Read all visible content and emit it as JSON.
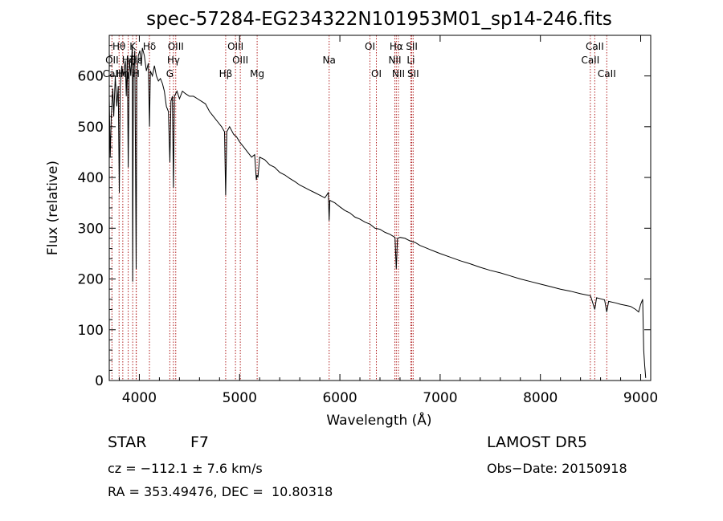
{
  "chart_data": {
    "type": "line",
    "title": "spec-57284-EG234322N101953M01_sp14-246.fits",
    "xlabel": "Wavelength (Å)",
    "ylabel": "Flux (relative)",
    "xlim": [
      3700,
      9100
    ],
    "ylim": [
      0,
      680
    ],
    "xticks": [
      4000,
      5000,
      6000,
      7000,
      8000,
      9000
    ],
    "yticks": [
      0,
      100,
      200,
      300,
      400,
      500,
      600
    ],
    "grid": false,
    "line_color": "#000000",
    "marker_color": "#b22222",
    "series": [
      {
        "values": [
          [
            3700,
            560
          ],
          [
            3710,
            440
          ],
          [
            3720,
            520
          ],
          [
            3735,
            575
          ],
          [
            3745,
            520
          ],
          [
            3760,
            600
          ],
          [
            3775,
            540
          ],
          [
            3790,
            580
          ],
          [
            3800,
            370
          ],
          [
            3810,
            580
          ],
          [
            3825,
            620
          ],
          [
            3840,
            600
          ],
          [
            3860,
            630
          ],
          [
            3870,
            560
          ],
          [
            3880,
            640
          ],
          [
            3889,
            420
          ],
          [
            3900,
            635
          ],
          [
            3915,
            600
          ],
          [
            3930,
            660
          ],
          [
            3934,
            195
          ],
          [
            3940,
            600
          ],
          [
            3955,
            650
          ],
          [
            3968,
            220
          ],
          [
            3975,
            600
          ],
          [
            3990,
            640
          ],
          [
            4005,
            650
          ],
          [
            4020,
            620
          ],
          [
            4030,
            655
          ],
          [
            4050,
            640
          ],
          [
            4070,
            610
          ],
          [
            4090,
            625
          ],
          [
            4101,
            500
          ],
          [
            4110,
            610
          ],
          [
            4130,
            600
          ],
          [
            4150,
            620
          ],
          [
            4170,
            600
          ],
          [
            4190,
            590
          ],
          [
            4210,
            595
          ],
          [
            4230,
            585
          ],
          [
            4250,
            570
          ],
          [
            4270,
            540
          ],
          [
            4290,
            530
          ],
          [
            4305,
            430
          ],
          [
            4315,
            550
          ],
          [
            4330,
            560
          ],
          [
            4340,
            380
          ],
          [
            4350,
            560
          ],
          [
            4375,
            570
          ],
          [
            4400,
            555
          ],
          [
            4430,
            570
          ],
          [
            4460,
            565
          ],
          [
            4500,
            560
          ],
          [
            4540,
            560
          ],
          [
            4580,
            555
          ],
          [
            4620,
            550
          ],
          [
            4660,
            545
          ],
          [
            4700,
            530
          ],
          [
            4740,
            520
          ],
          [
            4780,
            510
          ],
          [
            4820,
            500
          ],
          [
            4850,
            490
          ],
          [
            4861,
            365
          ],
          [
            4872,
            490
          ],
          [
            4900,
            500
          ],
          [
            4940,
            485
          ],
          [
            4970,
            480
          ],
          [
            5000,
            470
          ],
          [
            5040,
            460
          ],
          [
            5080,
            450
          ],
          [
            5120,
            440
          ],
          [
            5150,
            445
          ],
          [
            5167,
            395
          ],
          [
            5173,
            405
          ],
          [
            5183,
            400
          ],
          [
            5200,
            440
          ],
          [
            5250,
            435
          ],
          [
            5300,
            425
          ],
          [
            5350,
            420
          ],
          [
            5400,
            410
          ],
          [
            5450,
            405
          ],
          [
            5500,
            398
          ],
          [
            5550,
            392
          ],
          [
            5600,
            385
          ],
          [
            5650,
            380
          ],
          [
            5700,
            375
          ],
          [
            5750,
            370
          ],
          [
            5800,
            365
          ],
          [
            5850,
            360
          ],
          [
            5885,
            370
          ],
          [
            5893,
            315
          ],
          [
            5900,
            355
          ],
          [
            5950,
            350
          ],
          [
            6000,
            342
          ],
          [
            6050,
            335
          ],
          [
            6100,
            330
          ],
          [
            6150,
            322
          ],
          [
            6200,
            318
          ],
          [
            6250,
            312
          ],
          [
            6300,
            308
          ],
          [
            6350,
            300
          ],
          [
            6400,
            298
          ],
          [
            6450,
            292
          ],
          [
            6500,
            288
          ],
          [
            6550,
            282
          ],
          [
            6563,
            220
          ],
          [
            6575,
            280
          ],
          [
            6600,
            282
          ],
          [
            6650,
            280
          ],
          [
            6700,
            275
          ],
          [
            6750,
            272
          ],
          [
            6800,
            266
          ],
          [
            6850,
            262
          ],
          [
            6900,
            258
          ],
          [
            6950,
            254
          ],
          [
            7000,
            250
          ],
          [
            7100,
            243
          ],
          [
            7200,
            236
          ],
          [
            7300,
            230
          ],
          [
            7400,
            223
          ],
          [
            7500,
            217
          ],
          [
            7600,
            212
          ],
          [
            7700,
            206
          ],
          [
            7800,
            200
          ],
          [
            7900,
            195
          ],
          [
            8000,
            190
          ],
          [
            8100,
            185
          ],
          [
            8200,
            180
          ],
          [
            8300,
            176
          ],
          [
            8400,
            171
          ],
          [
            8500,
            167
          ],
          [
            8542,
            140
          ],
          [
            8560,
            163
          ],
          [
            8600,
            161
          ],
          [
            8640,
            159
          ],
          [
            8662,
            135
          ],
          [
            8680,
            156
          ],
          [
            8750,
            153
          ],
          [
            8800,
            150
          ],
          [
            8850,
            148
          ],
          [
            8900,
            146
          ],
          [
            8950,
            140
          ],
          [
            8980,
            135
          ],
          [
            9000,
            150
          ],
          [
            9020,
            160
          ],
          [
            9030,
            60
          ],
          [
            9040,
            30
          ],
          [
            9050,
            5
          ]
        ]
      }
    ],
    "lines": [
      {
        "label": "Hθ",
        "x": 3798,
        "row": 0
      },
      {
        "label": "OII",
        "x": 3727,
        "row": 1
      },
      {
        "label": "CaII",
        "x": 3725,
        "row": 2
      },
      {
        "label": "Hη",
        "x": 3835,
        "row": 2
      },
      {
        "label": "Hζ",
        "x": 3889,
        "row": 1
      },
      {
        "label": "Hε",
        "x": 3970,
        "row": 1
      },
      {
        "label": "K",
        "x": 3934,
        "row": 0
      },
      {
        "label": "H",
        "x": 3968,
        "row": 2
      },
      {
        "label": "Hδ",
        "x": 4101,
        "row": 0
      },
      {
        "label": "OIII",
        "x": 4363,
        "row": 0
      },
      {
        "label": "Hγ",
        "x": 4340,
        "row": 1
      },
      {
        "label": "G",
        "x": 4304,
        "row": 2
      },
      {
        "label": "Hβ",
        "x": 4861,
        "row": 2
      },
      {
        "label": "OIII",
        "x": 4959,
        "row": 0
      },
      {
        "label": "OIII",
        "x": 5007,
        "row": 1
      },
      {
        "label": "Mg",
        "x": 5175,
        "row": 2
      },
      {
        "label": "Na",
        "x": 5893,
        "row": 1
      },
      {
        "label": "OI",
        "x": 6300,
        "row": 0
      },
      {
        "label": "OI",
        "x": 6364,
        "row": 2
      },
      {
        "label": "Hα",
        "x": 6563,
        "row": 0
      },
      {
        "label": "NII",
        "x": 6548,
        "row": 1
      },
      {
        "label": "NII",
        "x": 6584,
        "row": 2
      },
      {
        "label": "SII",
        "x": 6717,
        "row": 0
      },
      {
        "label": "Li",
        "x": 6708,
        "row": 1
      },
      {
        "label": "SII",
        "x": 6731,
        "row": 2
      },
      {
        "label": "CaII",
        "x": 8542,
        "row": 0
      },
      {
        "label": "CaII",
        "x": 8498,
        "row": 1
      },
      {
        "label": "CaII",
        "x": 8662,
        "row": 2
      }
    ]
  },
  "info": {
    "class_label": "STAR",
    "subclass": "F7",
    "survey": "LAMOST DR5",
    "cz": "cz = −112.1 ± 7.6 km/s",
    "obs_date": "Obs−Date: 20150918",
    "radec": "RA = 353.49476, DEC =  10.80318"
  }
}
